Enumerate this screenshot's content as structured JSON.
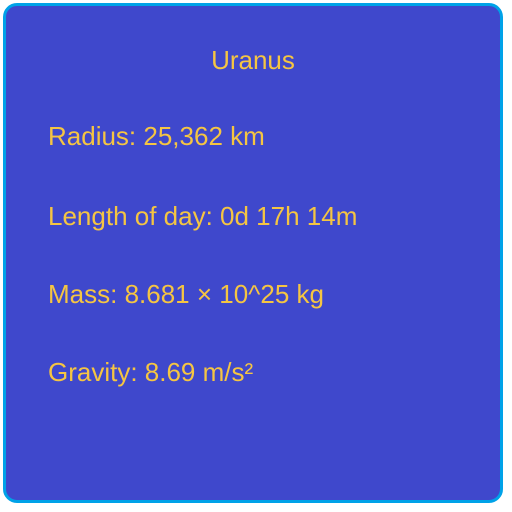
{
  "planet": {
    "name": "Uranus",
    "radius": "Radius: 25,362 km",
    "length_of_day": "Length of day: 0d 17h 14m",
    "mass": "Mass: 8.681 × 10^25 kg",
    "gravity": "Gravity: 8.69 m/s²"
  },
  "colors": {
    "background": "#3f48cc",
    "border": "#00a2e8",
    "text": "#f5c542"
  }
}
